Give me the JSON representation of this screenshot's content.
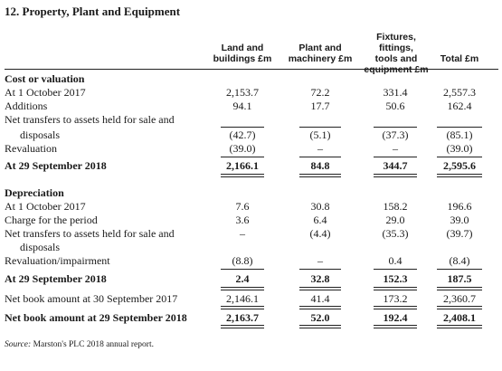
{
  "title": "12. Property, Plant and Equipment",
  "columns": [
    {
      "line1": "",
      "line2": "Land and",
      "line3": "buildings £m"
    },
    {
      "line1": "",
      "line2": "Plant and",
      "line3": "machinery £m"
    },
    {
      "line1": "Fixtures, fittings,",
      "line2": "tools and",
      "line3": "equipment £m"
    },
    {
      "line1": "",
      "line2": "",
      "line3": "Total £m"
    }
  ],
  "rows": [
    {
      "label": "Cost or valuation",
      "values": [
        "",
        "",
        "",
        ""
      ]
    },
    {
      "label": "At 1 October 2017",
      "values": [
        "2,153.7",
        "72.2",
        "331.4",
        "2,557.3"
      ]
    },
    {
      "label": "Additions",
      "values": [
        "94.1",
        "17.7",
        "50.6",
        "162.4"
      ]
    },
    {
      "label": "Net transfers to assets held for sale and",
      "values": [
        "",
        "",
        "",
        ""
      ]
    },
    {
      "label": "disposals",
      "values": [
        "(42.7)",
        "(5.1)",
        "(37.3)",
        "(85.1)"
      ]
    },
    {
      "label": "Revaluation",
      "values": [
        "(39.0)",
        "–",
        "–",
        "(39.0)"
      ]
    },
    {
      "label": "At 29 September 2018",
      "values": [
        "2,166.1",
        "84.8",
        "344.7",
        "2,595.6"
      ]
    },
    {
      "label": "Depreciation",
      "values": [
        "",
        "",
        "",
        ""
      ]
    },
    {
      "label": "At 1 October 2017",
      "values": [
        "7.6",
        "30.8",
        "158.2",
        "196.6"
      ]
    },
    {
      "label": "Charge for the period",
      "values": [
        "3.6",
        "6.4",
        "29.0",
        "39.0"
      ]
    },
    {
      "label": "Net transfers to assets held for sale and",
      "values": [
        "–",
        "(4.4)",
        "(35.3)",
        "(39.7)"
      ]
    },
    {
      "label": "disposals",
      "values": [
        "",
        "",
        "",
        ""
      ]
    },
    {
      "label": "Revaluation/impairment",
      "values": [
        "(8.8)",
        "–",
        "0.4",
        "(8.4)"
      ]
    },
    {
      "label": "At 29 September 2018",
      "values": [
        "2.4",
        "32.8",
        "152.3",
        "187.5"
      ]
    },
    {
      "label": "Net book amount at 30 September 2017",
      "values": [
        "2,146.1",
        "41.4",
        "173.2",
        "2,360.7"
      ]
    },
    {
      "label": "Net book amount at 29 September 2018",
      "values": [
        "2,163.7",
        "52.0",
        "192.4",
        "2,408.1"
      ]
    }
  ],
  "source": {
    "prefix": "Source:",
    "text": " Marston's PLC 2018 annual report."
  }
}
